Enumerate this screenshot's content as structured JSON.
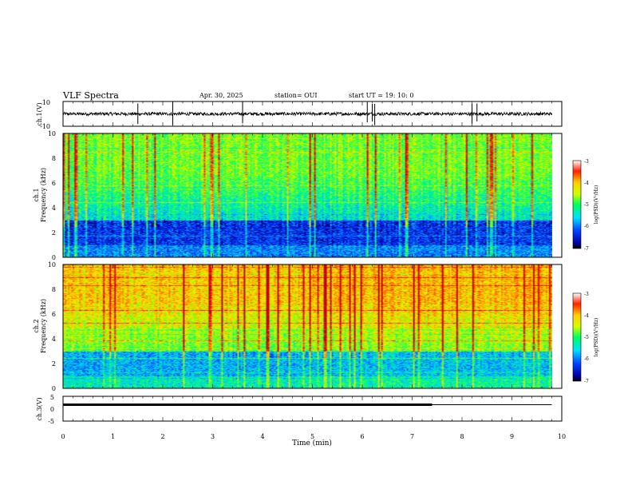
{
  "header": {
    "title": "VLF Spectra",
    "date": "Apr. 30, 2025",
    "station": "station= OUI",
    "start": "start  UT =   19: 10: 0"
  },
  "chart_data": [
    {
      "type": "line",
      "panel": "ch1-waveform",
      "ylabel": "ch.1(V)",
      "ylim": [
        -10,
        10
      ],
      "yticks": [
        "10",
        "-10"
      ],
      "xlim": [
        0,
        10
      ],
      "baseline": 0,
      "color": "#000000"
    },
    {
      "type": "heatmap",
      "panel": "ch1-spectrogram",
      "ylabel_top": "ch.1",
      "ylabel": "Frequency (kHz)",
      "ylim": [
        0,
        10
      ],
      "yticks": [
        "0",
        "2",
        "4",
        "6",
        "8",
        "10"
      ],
      "xlim": [
        0,
        10
      ],
      "data_end_min": 9.8,
      "colorbar": {
        "label": "log(PSD)(V²/Hz)",
        "range": [
          -7,
          -3
        ],
        "ticks": [
          "-3",
          "-4",
          "-5",
          "-6",
          "-7"
        ]
      }
    },
    {
      "type": "heatmap",
      "panel": "ch2-spectrogram",
      "ylabel_top": "ch.2",
      "ylabel": "Frequency (kHz)",
      "ylim": [
        0,
        10
      ],
      "yticks": [
        "0",
        "2",
        "4",
        "6",
        "8",
        "10"
      ],
      "xlim": [
        0,
        10
      ],
      "data_end_min": 9.8,
      "colorbar": {
        "label": "log(PSD)(V²/Hz)",
        "range": [
          -7,
          -3
        ],
        "ticks": [
          "-3",
          "-4",
          "-5",
          "-6",
          "-7"
        ]
      }
    },
    {
      "type": "line",
      "panel": "ch3-waveform",
      "ylabel": "ch.3(V)",
      "ylim": [
        -5,
        5
      ],
      "yticks": [
        "5",
        "0",
        "-5"
      ],
      "xlim": [
        0,
        10
      ],
      "xlabel": "Time (min)",
      "xticks": [
        "0",
        "1",
        "2",
        "3",
        "4",
        "5",
        "6",
        "7",
        "8",
        "9",
        "10"
      ],
      "series": [
        {
          "x": [
            0,
            7.4
          ],
          "y": [
            0,
            0
          ],
          "thick": true
        },
        {
          "x": [
            7.4,
            9.8
          ],
          "y": [
            0,
            0
          ],
          "thick": false
        }
      ]
    }
  ]
}
